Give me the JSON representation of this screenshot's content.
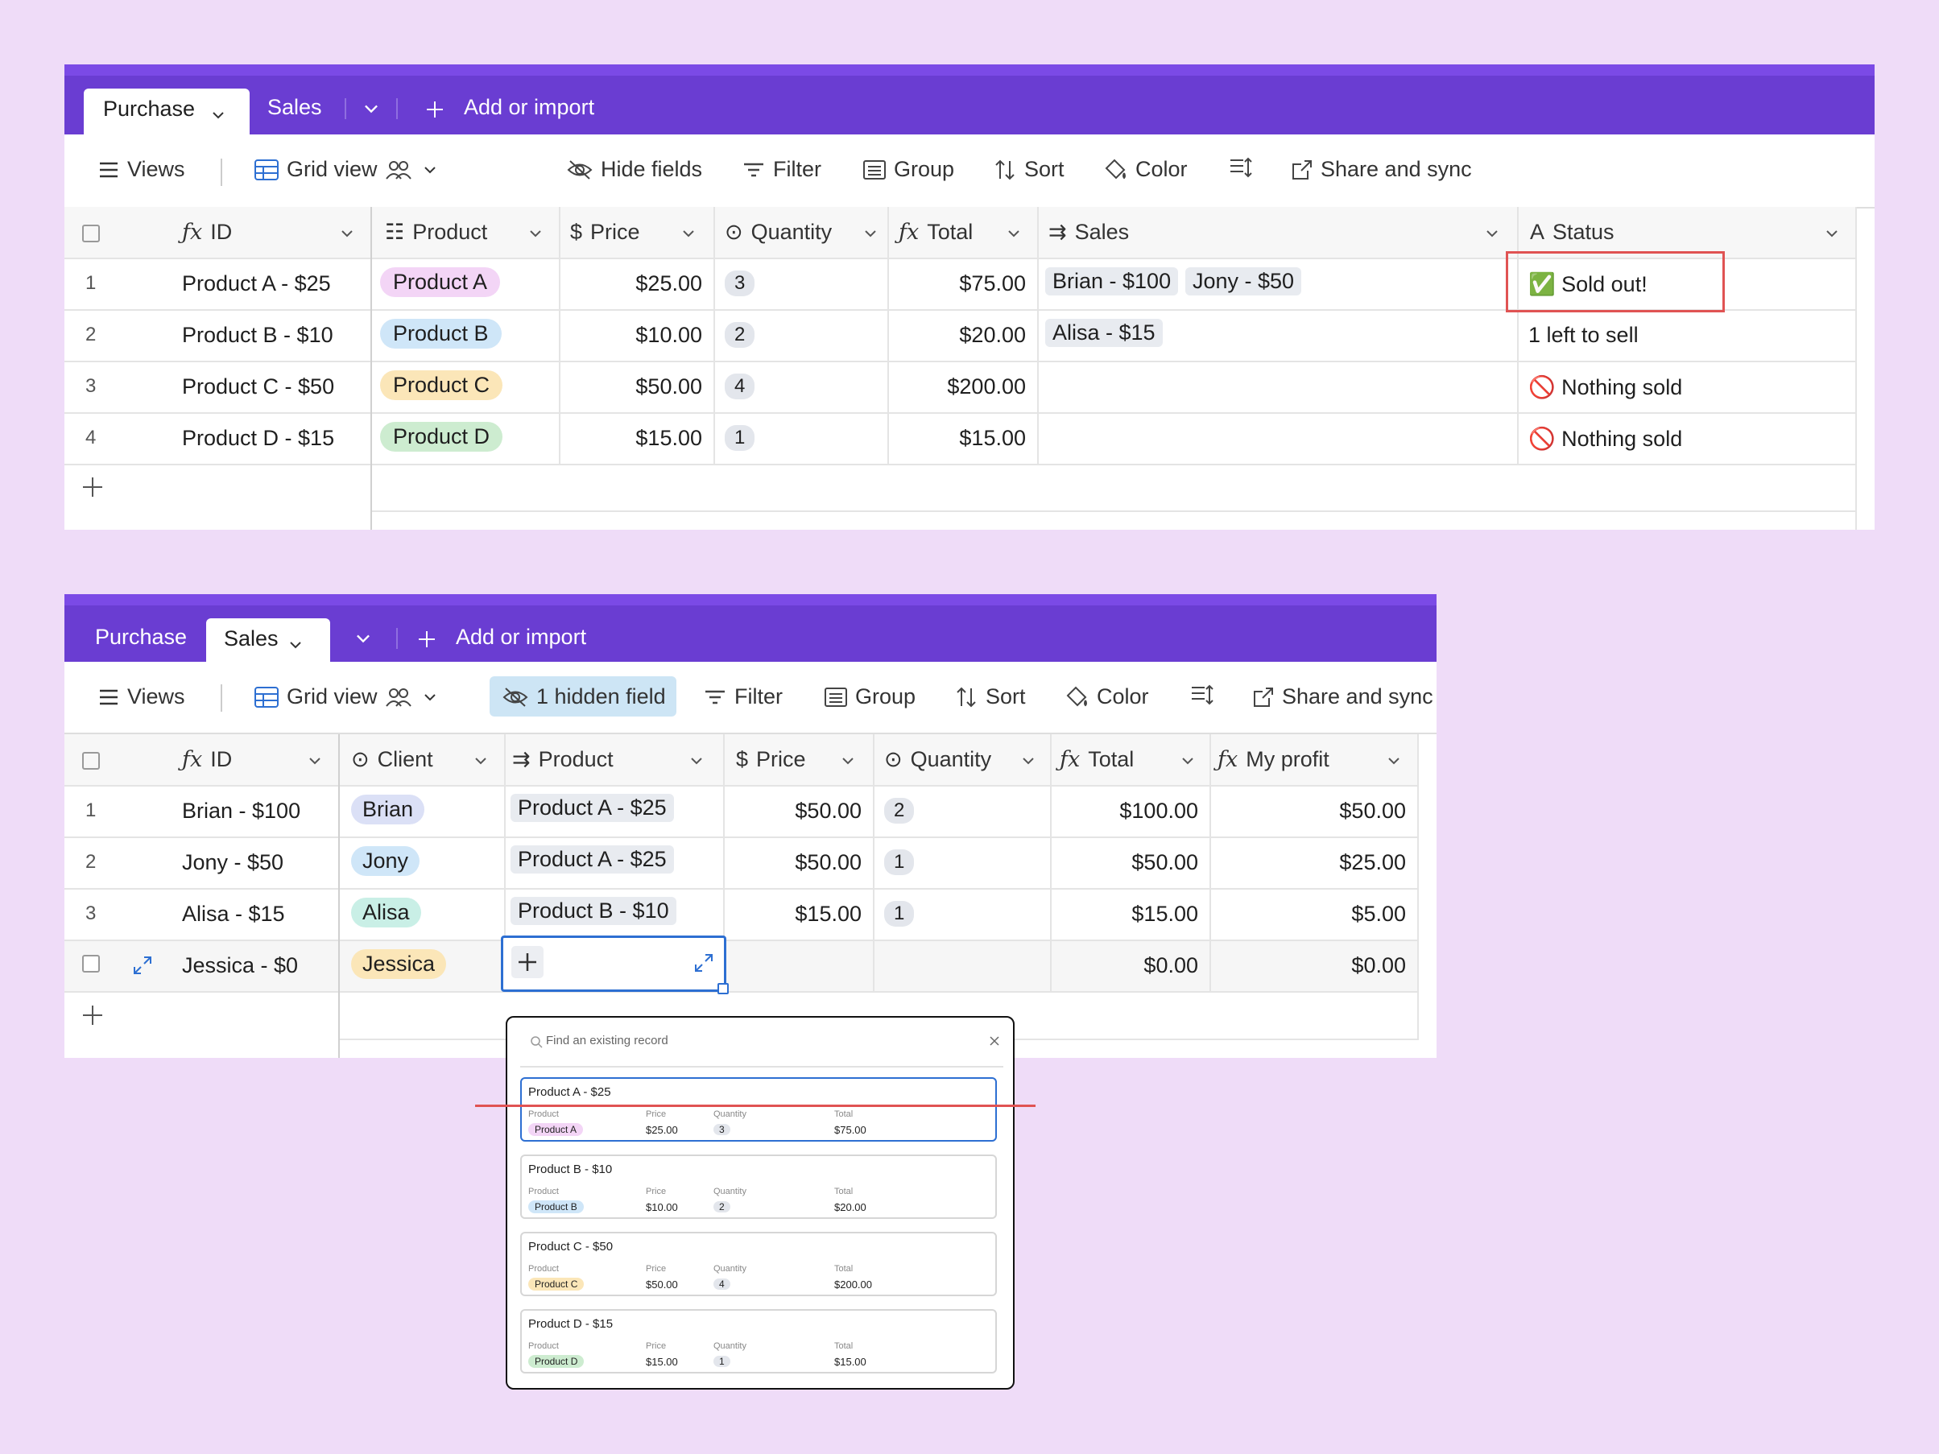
{
  "colors": {
    "tab_bar": "#6a3dd2",
    "accent_blue": "#2d6fd2",
    "highlight_red": "#e05353",
    "page_bg": "#efdcf8"
  },
  "top": {
    "tabs": [
      {
        "label": "Purchase"
      },
      {
        "label": "Sales"
      }
    ],
    "add_import": "Add or import",
    "toolbar": {
      "views": "Views",
      "grid_view": "Grid view",
      "hide_fields": "Hide fields",
      "filter": "Filter",
      "group": "Group",
      "sort": "Sort",
      "color": "Color",
      "share": "Share and sync"
    },
    "columns": [
      "ID",
      "Product",
      "Price",
      "Quantity",
      "Total",
      "Sales",
      "Status"
    ],
    "rows": [
      {
        "n": "1",
        "id": "Product A - $25",
        "product": "Product A",
        "price": "$25.00",
        "qty": "3",
        "total": "$75.00",
        "sales": [
          "Brian - $100",
          "Jony - $50"
        ],
        "status": "✅ Sold out!"
      },
      {
        "n": "2",
        "id": "Product B - $10",
        "product": "Product B",
        "price": "$10.00",
        "qty": "2",
        "total": "$20.00",
        "sales": [
          "Alisa - $15"
        ],
        "status": "1 left to sell"
      },
      {
        "n": "3",
        "id": "Product C - $50",
        "product": "Product C",
        "price": "$50.00",
        "qty": "4",
        "total": "$200.00",
        "sales": [],
        "status": "🚫 Nothing sold"
      },
      {
        "n": "4",
        "id": "Product D - $15",
        "product": "Product D",
        "price": "$15.00",
        "qty": "1",
        "total": "$15.00",
        "sales": [],
        "status": "🚫 Nothing sold"
      }
    ]
  },
  "bottom": {
    "tabs": [
      {
        "label": "Purchase"
      },
      {
        "label": "Sales"
      }
    ],
    "add_import": "Add or import",
    "toolbar": {
      "views": "Views",
      "grid_view": "Grid view",
      "hidden": "1 hidden field",
      "filter": "Filter",
      "group": "Group",
      "sort": "Sort",
      "color": "Color",
      "share": "Share and sync"
    },
    "columns": [
      "ID",
      "Client",
      "Product",
      "Price",
      "Quantity",
      "Total",
      "My profit"
    ],
    "rows": [
      {
        "n": "1",
        "id": "Brian - $100",
        "client": "Brian",
        "product": "Product A - $25",
        "price": "$50.00",
        "qty": "2",
        "total": "$100.00",
        "profit": "$50.00"
      },
      {
        "n": "2",
        "id": "Jony - $50",
        "client": "Jony",
        "product": "Product A - $25",
        "price": "$50.00",
        "qty": "1",
        "total": "$50.00",
        "profit": "$25.00"
      },
      {
        "n": "3",
        "id": "Alisa - $15",
        "client": "Alisa",
        "product": "Product B - $10",
        "price": "$15.00",
        "qty": "1",
        "total": "$15.00",
        "profit": "$5.00"
      },
      {
        "n": "",
        "id": "Jessica - $0",
        "client": "Jessica",
        "product": "",
        "price": "",
        "qty": "",
        "total": "$0.00",
        "profit": "$0.00"
      }
    ]
  },
  "popup": {
    "search_placeholder": "Find an existing record",
    "labels": {
      "product": "Product",
      "price": "Price",
      "quantity": "Quantity",
      "total": "Total"
    },
    "records": [
      {
        "title": "Product A - $25",
        "product": "Product A",
        "price": "$25.00",
        "qty": "3",
        "total": "$75.00"
      },
      {
        "title": "Product B - $10",
        "product": "Product B",
        "price": "$10.00",
        "qty": "2",
        "total": "$20.00"
      },
      {
        "title": "Product C - $50",
        "product": "Product C",
        "price": "$50.00",
        "qty": "4",
        "total": "$200.00"
      },
      {
        "title": "Product D - $15",
        "product": "Product D",
        "price": "$15.00",
        "qty": "1",
        "total": "$15.00"
      }
    ]
  }
}
